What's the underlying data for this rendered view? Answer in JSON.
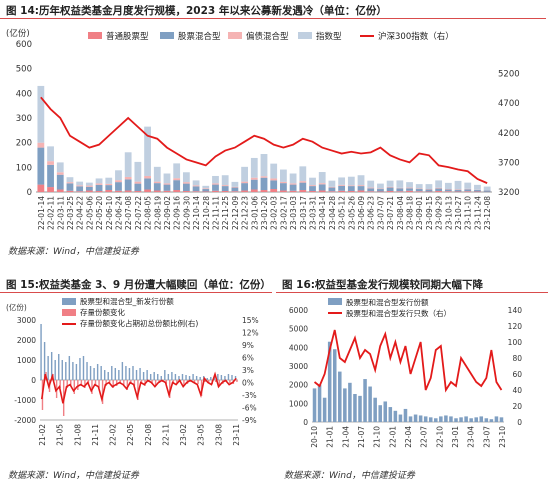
{
  "figure1": {
    "title": "图 14:历年权益类基金月度发行规模，2023 年以来公募新发遇冷（单位：亿份）",
    "source": "数据来源：Wind，中信建投证券",
    "chart_data": {
      "type": "bar",
      "stacked": true,
      "y_unit_label": "(亿份)",
      "ylim": [
        0,
        600
      ],
      "y_ticks": [
        0,
        100,
        200,
        300,
        400,
        500,
        600
      ],
      "y2lim": [
        3200,
        5700
      ],
      "y2_ticks": [
        3200,
        3700,
        4200,
        4700,
        5200
      ],
      "x_tick_labels": [
        "22-01-14",
        "22-02-11",
        "22-03-11",
        "22-03-25",
        "22-04-22",
        "22-05-06",
        "22-05-20",
        "22-06-10",
        "22-06-24",
        "22-07-08",
        "22-07-22",
        "22-08-05",
        "22-08-19",
        "22-09-02",
        "22-09-16",
        "22-09-30",
        "22-10-14",
        "22-10-28",
        "22-11-11",
        "22-11-25",
        "22-12-09",
        "22-12-23",
        "23-01-06",
        "23-01-20",
        "23-02-03",
        "23-02-17",
        "23-03-03",
        "23-03-17",
        "23-03-31",
        "23-04-14",
        "23-04-28",
        "23-05-12",
        "23-05-26",
        "23-06-09",
        "23-06-23",
        "23-07-07",
        "23-07-21",
        "23-08-04",
        "23-08-18",
        "23-09-01",
        "23-09-15",
        "23-09-29",
        "23-10-13",
        "23-10-27",
        "23-11-10",
        "23-11-24",
        "23-12-08"
      ],
      "x_tick_labels_visible": [
        "22-01-14",
        "22-02-11",
        "22-03-11",
        "22-03-25",
        "22-04-22",
        "22-05-06",
        "22-05-20",
        "22-06-10",
        "22-06-24",
        "22-07-08",
        "22-07-22",
        "22-08-05",
        "22-08-19",
        "22-09-02",
        "22-09-16",
        "22-09-30",
        "22-10-14",
        "22-10-28",
        "22-11-11",
        "22-11-25",
        "22-12-09",
        "22-12-23",
        "23-01-06",
        "23-01-20",
        "23-02-03",
        "23-02-17",
        "23-03-03",
        "23-03-17",
        "23-03-31",
        "23-04-14",
        "23-04-28",
        "23-05-12",
        "23-05-26",
        "23-06-09",
        "23-06-23",
        "23-07-07",
        "23-07-21",
        "23-08-04",
        "23-08-18",
        "23-09-01",
        "23-09-15",
        "23-09-29",
        "23-10-13",
        "23-10-27",
        "23-11-10",
        "23-11-24",
        "23-12-08"
      ],
      "series": [
        {
          "name": "普通股票型",
          "color": "#f07f85",
          "values": [
            30,
            20,
            10,
            5,
            3,
            6,
            4,
            8,
            5,
            6,
            4,
            10,
            6,
            5,
            8,
            4,
            3,
            2,
            5,
            4,
            3,
            6,
            10,
            8,
            12,
            6,
            5,
            8,
            4,
            6,
            3,
            5,
            4,
            6,
            3,
            2,
            4,
            3,
            5,
            3,
            2,
            4,
            3,
            2,
            3,
            2,
            1
          ]
        },
        {
          "name": "股票混合型",
          "color": "#7f9fc2",
          "values": [
            150,
            90,
            60,
            30,
            20,
            15,
            25,
            20,
            35,
            45,
            30,
            45,
            30,
            25,
            40,
            30,
            20,
            10,
            25,
            20,
            15,
            30,
            40,
            50,
            35,
            30,
            25,
            30,
            20,
            25,
            15,
            20,
            20,
            18,
            12,
            10,
            14,
            12,
            10,
            9,
            8,
            10,
            7,
            6,
            8,
            6,
            5
          ]
        },
        {
          "name": "偏债混合型",
          "color": "#f5b3b3",
          "values": [
            20,
            15,
            10,
            5,
            4,
            5,
            6,
            5,
            8,
            10,
            8,
            10,
            6,
            5,
            8,
            6,
            4,
            3,
            5,
            4,
            3,
            6,
            8,
            6,
            8,
            5,
            5,
            6,
            4,
            5,
            3,
            4,
            3,
            4,
            3,
            2,
            3,
            2,
            3,
            2,
            2,
            3,
            2,
            2,
            2,
            1,
            1
          ]
        },
        {
          "name": "指数型",
          "color": "#c0cfe0",
          "values": [
            230,
            60,
            40,
            20,
            15,
            12,
            20,
            25,
            40,
            100,
            80,
            200,
            60,
            40,
            60,
            40,
            20,
            10,
            30,
            40,
            20,
            60,
            80,
            90,
            60,
            50,
            40,
            60,
            30,
            45,
            25,
            30,
            35,
            40,
            28,
            20,
            25,
            30,
            22,
            18,
            20,
            30,
            25,
            35,
            25,
            20,
            15
          ]
        }
      ],
      "line": {
        "name": "沪深300指数（右）",
        "color": "#e31a1a",
        "values": [
          4800,
          4600,
          4450,
          4150,
          4050,
          3950,
          4000,
          4150,
          4300,
          4450,
          4300,
          4150,
          4100,
          3950,
          3850,
          3750,
          3700,
          3650,
          3800,
          3900,
          3950,
          4050,
          4150,
          4100,
          4000,
          3950,
          4000,
          4100,
          4050,
          3950,
          3900,
          3850,
          3880,
          3850,
          3870,
          3950,
          3820,
          3750,
          3700,
          3850,
          3820,
          3650,
          3620,
          3580,
          3550,
          3420,
          3350
        ]
      }
    }
  },
  "figure2": {
    "title": "图 15:权益类基金 3、9 月份遭大幅赎回（单位：亿份）",
    "source": "数据来源：Wind，中信建投证券",
    "chart_data": {
      "type": "bar",
      "y_unit_label": "(亿份)",
      "ylim": [
        -2000,
        3000
      ],
      "y_ticks": [
        -2000,
        -1000,
        0,
        1000,
        2000,
        3000
      ],
      "y2lim": [
        -0.09,
        0.15
      ],
      "y2_ticks_labels": [
        "-9%",
        "-6%",
        "-3%",
        "0%",
        "3%",
        "6%",
        "9%",
        "12%",
        "15%"
      ],
      "y2_ticks": [
        -0.09,
        -0.06,
        -0.03,
        0,
        0.03,
        0.06,
        0.09,
        0.12,
        0.15
      ],
      "x_tick_labels": [
        "21-02",
        "21-05",
        "21-08",
        "21-11",
        "22-02",
        "22-05",
        "22-08",
        "22-11",
        "23-02",
        "23-05",
        "23-08",
        "23-11"
      ],
      "series": [
        {
          "name": "股票型和混合型_新发行份额",
          "color": "#7f9fc2",
          "values": [
            2800,
            1900,
            1200,
            1400,
            1000,
            1300,
            1000,
            900,
            1200,
            900,
            800,
            1100,
            1200,
            900,
            700,
            600,
            800,
            700,
            500,
            400,
            700,
            600,
            500,
            900,
            700,
            600,
            700,
            500,
            600,
            400,
            500,
            300,
            400,
            300,
            200,
            500,
            300,
            400,
            300,
            200,
            300,
            250,
            200,
            300,
            200,
            150,
            200,
            100,
            150,
            200,
            300,
            250,
            200,
            300,
            250,
            200
          ]
        },
        {
          "name": "存量份额变化",
          "color": "#f07f85",
          "values": [
            -1500,
            400,
            -600,
            300,
            -900,
            -400,
            -1800,
            -400,
            -300,
            -700,
            -500,
            -300,
            -400,
            -200,
            -700,
            -300,
            -400,
            -1200,
            -300,
            -200,
            -400,
            -300,
            -200,
            -300,
            -500,
            -200,
            -300,
            -1000,
            -200,
            -300,
            -100,
            -200,
            -300,
            -150,
            -100,
            -200,
            -900,
            -150,
            -200,
            -100,
            -300,
            -200,
            -100,
            -150,
            -200,
            -800,
            -100,
            -150,
            -200,
            -100,
            -300,
            -200,
            -100,
            -150,
            -200,
            -100
          ]
        }
      ],
      "line": {
        "name": "存量份额变化占期初总份额比例(右)",
        "color": "#e31a1a",
        "values": [
          -0.04,
          0.02,
          -0.01,
          0.015,
          -0.02,
          -0.01,
          -0.05,
          -0.01,
          -0.005,
          -0.02,
          -0.01,
          -0.005,
          -0.01,
          0.0,
          -0.02,
          -0.005,
          -0.01,
          -0.04,
          -0.005,
          0.0,
          -0.01,
          -0.005,
          0.0,
          -0.005,
          -0.015,
          0.0,
          -0.005,
          -0.035,
          0.0,
          -0.005,
          0.005,
          0.0,
          -0.01,
          0.0,
          0.005,
          0.0,
          -0.03,
          0.0,
          -0.005,
          0.005,
          -0.01,
          0.0,
          0.005,
          0.0,
          -0.005,
          -0.03,
          0.01,
          0.0,
          -0.005,
          0.02,
          -0.01,
          0.0,
          0.005,
          -0.005,
          0.0,
          0.01
        ]
      }
    }
  },
  "figure3": {
    "title": "图 16:权益型基金发行规模较同期大幅下降",
    "source": "数据来源：Wind，中信建投证券",
    "chart_data": {
      "type": "bar",
      "ylim": [
        0,
        6000
      ],
      "y_ticks": [
        0,
        1000,
        2000,
        3000,
        4000,
        5000,
        6000
      ],
      "y2lim": [
        0,
        140
      ],
      "y2_ticks": [
        0,
        20,
        40,
        60,
        80,
        100,
        120,
        140
      ],
      "x_tick_labels": [
        "20-10",
        "21-01",
        "21-04",
        "21-07",
        "21-10",
        "22-01",
        "22-04",
        "22-07",
        "22-10",
        "23-01",
        "23-04",
        "23-07",
        "23-10"
      ],
      "series": [
        {
          "name": "股票型和混合型发行份额",
          "color": "#7f9fc2",
          "values": [
            1800,
            2000,
            1300,
            4300,
            3900,
            2700,
            1800,
            2100,
            1500,
            1400,
            2300,
            1900,
            1300,
            900,
            1100,
            800,
            600,
            400,
            700,
            300,
            400,
            350,
            300,
            250,
            200,
            300,
            350,
            300,
            200,
            250,
            300,
            200,
            250,
            300,
            200,
            150,
            300,
            250
          ]
        }
      ],
      "line": {
        "name": "股票型和混合型发行只数（右）",
        "color": "#e31a1a",
        "values": [
          50,
          45,
          60,
          90,
          115,
          80,
          75,
          90,
          105,
          80,
          90,
          85,
          65,
          95,
          110,
          80,
          100,
          75,
          95,
          60,
          80,
          100,
          40,
          55,
          90,
          95,
          40,
          50,
          45,
          80,
          70,
          60,
          50,
          45,
          55,
          90,
          50,
          40
        ]
      }
    }
  }
}
